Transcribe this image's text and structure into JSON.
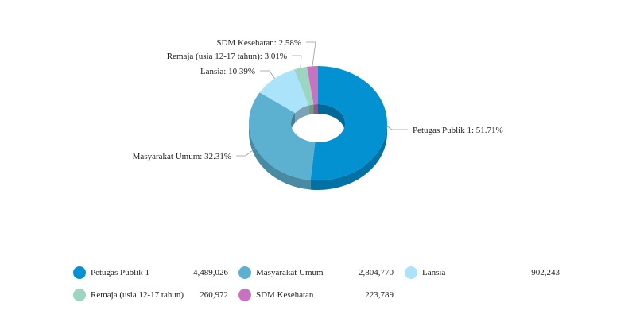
{
  "chart_data": {
    "type": "pie",
    "style": "3d-donut",
    "series": [
      {
        "name": "Petugas Publik 1",
        "value": 4489026,
        "percent_label": "51.71%",
        "color": "#0391d2"
      },
      {
        "name": "Masyarakat Umum",
        "value": 2804770,
        "percent_label": "32.31%",
        "color": "#5bb1cf"
      },
      {
        "name": "Lansia",
        "value": 902243,
        "percent_label": "10.39%",
        "color": "#abe3fa"
      },
      {
        "name": "Remaja (usia 12-17 tahun)",
        "value": 260972,
        "percent_label": "3.01%",
        "color": "#9dd6c0"
      },
      {
        "name": "SDM Kesehatan",
        "value": 223789,
        "percent_label": "2.58%",
        "color": "#c873c0"
      }
    ],
    "legend": {
      "position": "bottom",
      "values": [
        "4,489,026",
        "2,804,770",
        "902,243",
        "260,972",
        "223,789"
      ]
    }
  }
}
